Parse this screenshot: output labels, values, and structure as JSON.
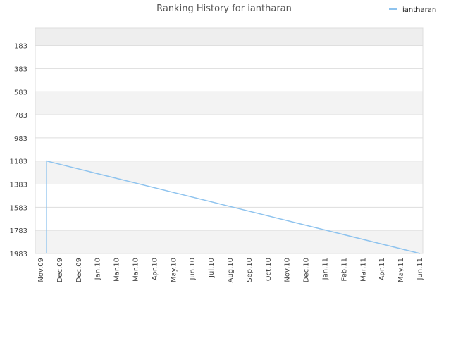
{
  "chart_data": {
    "type": "line",
    "title": "Ranking History for iantharan",
    "xlabel": "",
    "ylabel": "",
    "y_inverted": true,
    "ylim": [
      1983,
      33
    ],
    "y_ticks": [
      183,
      383,
      583,
      783,
      983,
      1183,
      1383,
      1583,
      1783,
      1983
    ],
    "x_ticks": [
      "Nov.09",
      "Dec.09",
      "Dec.09",
      "Jan.10",
      "Mar.10",
      "Mar.10",
      "Apr.10",
      "May.10",
      "Jun.10",
      "Jul.10",
      "Aug.10",
      "Sep.10",
      "Oct.10",
      "Nov.10",
      "Dec.10",
      "Jan.11",
      "Feb.11",
      "Mar.11",
      "Apr.11",
      "May.11",
      "Jun.11"
    ],
    "grid": true,
    "legend_position": "top-right",
    "series": [
      {
        "name": "iantharan",
        "color": "#8ec3ee",
        "points": [
          {
            "x": 0.3,
            "y": 1983
          },
          {
            "x": 0.3,
            "y": 1183
          },
          {
            "x": 20,
            "y": 1983
          }
        ]
      }
    ]
  }
}
